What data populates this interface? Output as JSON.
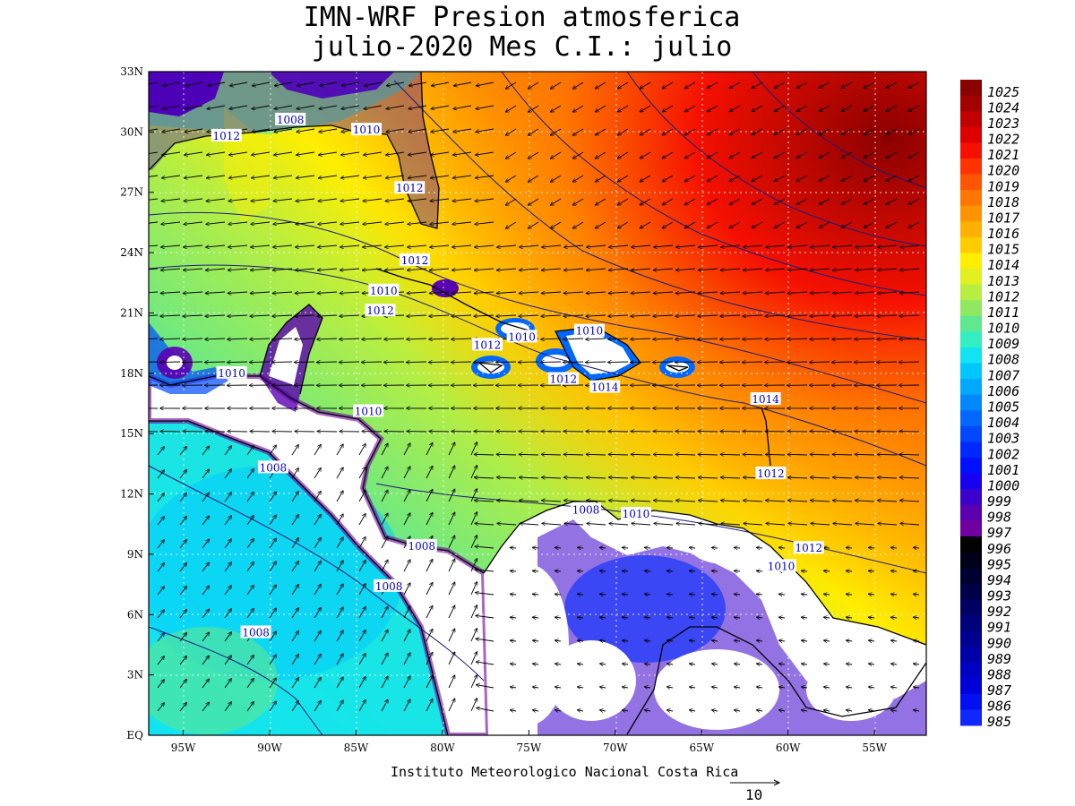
{
  "title": {
    "line1": "IMN-WRF  Presion atmosferica",
    "line2": "julio-2020 Mes C.I.: julio"
  },
  "footer": "Instituto Meteorologico Nacional Costa Rica",
  "vector_scale": {
    "value": "10"
  },
  "map": {
    "lon_range": [
      -97,
      -52
    ],
    "lat_range": [
      0,
      33
    ],
    "lon_ticks": [
      {
        "value": -95,
        "label": "95W"
      },
      {
        "value": -90,
        "label": "90W"
      },
      {
        "value": -85,
        "label": "85W"
      },
      {
        "value": -80,
        "label": "80W"
      },
      {
        "value": -75,
        "label": "75W"
      },
      {
        "value": -70,
        "label": "70W"
      },
      {
        "value": -65,
        "label": "65W"
      },
      {
        "value": -60,
        "label": "60W"
      },
      {
        "value": -55,
        "label": "55W"
      }
    ],
    "lat_ticks": [
      {
        "value": 33,
        "label": "33N"
      },
      {
        "value": 30,
        "label": "30N"
      },
      {
        "value": 27,
        "label": "27N"
      },
      {
        "value": 24,
        "label": "24N"
      },
      {
        "value": 21,
        "label": "21N"
      },
      {
        "value": 18,
        "label": "18N"
      },
      {
        "value": 15,
        "label": "15N"
      },
      {
        "value": 12,
        "label": "12N"
      },
      {
        "value": 9,
        "label": "9N"
      },
      {
        "value": 6,
        "label": "6N"
      },
      {
        "value": 3,
        "label": "3N"
      },
      {
        "value": 0,
        "label": "EQ"
      }
    ],
    "contour_labels": [
      {
        "text": "1012",
        "lon": -92.5,
        "lat": 29.8
      },
      {
        "text": "1008",
        "lon": -88.8,
        "lat": 30.6
      },
      {
        "text": "1010",
        "lon": -84.4,
        "lat": 30.1
      },
      {
        "text": "1012",
        "lon": -81.9,
        "lat": 27.2
      },
      {
        "text": "1012",
        "lon": -81.6,
        "lat": 23.6
      },
      {
        "text": "1010",
        "lon": -83.4,
        "lat": 22.1
      },
      {
        "text": "1012",
        "lon": -83.6,
        "lat": 21.1
      },
      {
        "text": "1010",
        "lon": -92.2,
        "lat": 18.0
      },
      {
        "text": "1010",
        "lon": -84.3,
        "lat": 16.1
      },
      {
        "text": "1008",
        "lon": -89.8,
        "lat": 13.3
      },
      {
        "text": "1012",
        "lon": -77.4,
        "lat": 19.4
      },
      {
        "text": "1010",
        "lon": -75.4,
        "lat": 19.8
      },
      {
        "text": "1010",
        "lon": -71.5,
        "lat": 20.1
      },
      {
        "text": "1012",
        "lon": -73.0,
        "lat": 17.7
      },
      {
        "text": "1014",
        "lon": -70.6,
        "lat": 17.3
      },
      {
        "text": "1014",
        "lon": -61.3,
        "lat": 16.7
      },
      {
        "text": "1012",
        "lon": -61.0,
        "lat": 13.0
      },
      {
        "text": "1008",
        "lon": -71.7,
        "lat": 11.2
      },
      {
        "text": "1010",
        "lon": -68.8,
        "lat": 11.0
      },
      {
        "text": "1012",
        "lon": -58.8,
        "lat": 9.3
      },
      {
        "text": "1010",
        "lon": -60.4,
        "lat": 8.4
      },
      {
        "text": "1008",
        "lon": -81.2,
        "lat": 9.4
      },
      {
        "text": "1008",
        "lon": -83.1,
        "lat": 7.4
      },
      {
        "text": "1008",
        "lon": -90.8,
        "lat": 5.1
      }
    ]
  },
  "colorbar": {
    "levels": [
      {
        "label": "1025",
        "color": "#8b0000"
      },
      {
        "label": "1024",
        "color": "#a30000"
      },
      {
        "label": "1023",
        "color": "#c00000"
      },
      {
        "label": "1022",
        "color": "#dd0000"
      },
      {
        "label": "1021",
        "color": "#f51000"
      },
      {
        "label": "1020",
        "color": "#ff3300"
      },
      {
        "label": "1019",
        "color": "#ff5500"
      },
      {
        "label": "1018",
        "color": "#ff7700"
      },
      {
        "label": "1017",
        "color": "#ff9400"
      },
      {
        "label": "1016",
        "color": "#ffb000"
      },
      {
        "label": "1015",
        "color": "#ffcc00"
      },
      {
        "label": "1014",
        "color": "#ffee00"
      },
      {
        "label": "1013",
        "color": "#e0f020"
      },
      {
        "label": "1012",
        "color": "#b8ee40"
      },
      {
        "label": "1011",
        "color": "#8ee860"
      },
      {
        "label": "1010",
        "color": "#5ee890"
      },
      {
        "label": "1009",
        "color": "#33eec0"
      },
      {
        "label": "1008",
        "color": "#10e4f0"
      },
      {
        "label": "1007",
        "color": "#00c8ff"
      },
      {
        "label": "1006",
        "color": "#00a8ff"
      },
      {
        "label": "1005",
        "color": "#0088ff"
      },
      {
        "label": "1004",
        "color": "#0068ff"
      },
      {
        "label": "1003",
        "color": "#0048ff"
      },
      {
        "label": "1002",
        "color": "#0028ff"
      },
      {
        "label": "1001",
        "color": "#0010ff"
      },
      {
        "label": "1000",
        "color": "#1800ee"
      },
      {
        "label": "999",
        "color": "#3a00cc"
      },
      {
        "label": "998",
        "color": "#5a00b0"
      },
      {
        "label": "997",
        "color": "#7000a0"
      },
      {
        "label": "996",
        "color": "#000000"
      },
      {
        "label": "995",
        "color": "#000018"
      },
      {
        "label": "994",
        "color": "#000030"
      },
      {
        "label": "993",
        "color": "#000048"
      },
      {
        "label": "992",
        "color": "#000060"
      },
      {
        "label": "991",
        "color": "#000078"
      },
      {
        "label": "990",
        "color": "#000090"
      },
      {
        "label": "989",
        "color": "#0000a8"
      },
      {
        "label": "988",
        "color": "#0000c0"
      },
      {
        "label": "987",
        "color": "#0000d8"
      },
      {
        "label": "986",
        "color": "#0010f0"
      },
      {
        "label": "985",
        "color": "#1028ff"
      }
    ]
  }
}
